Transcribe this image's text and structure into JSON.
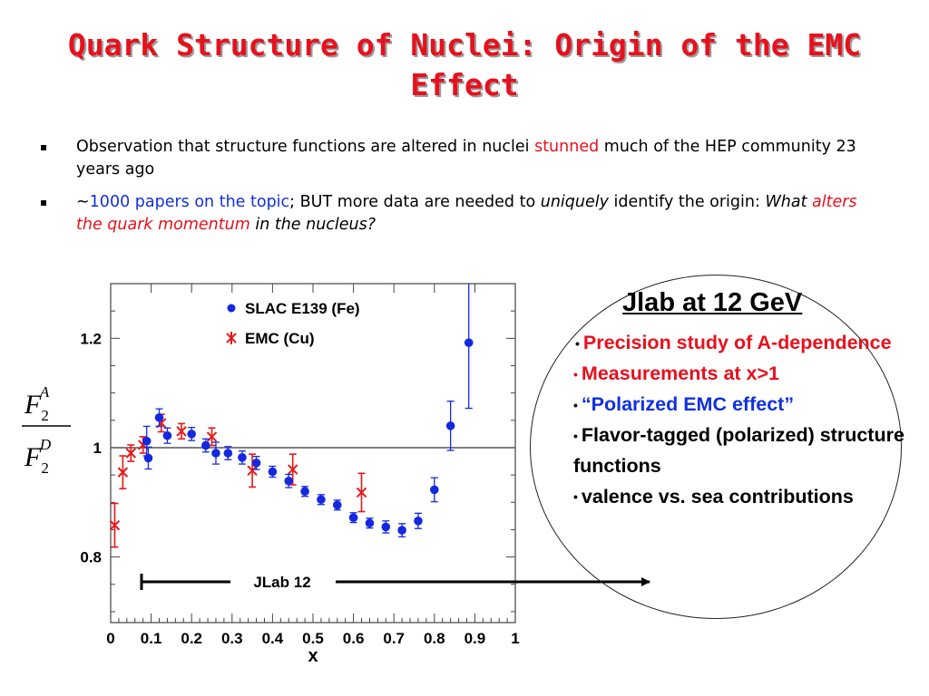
{
  "slide": {
    "title": "Quark Structure of Nuclei: Origin of the EMC Effect",
    "bullets": [
      {
        "marker": "▪",
        "segments": [
          {
            "text": "Observation that structure functions are altered in nuclei ",
            "style": "plain"
          },
          {
            "text": "stunned",
            "style": "red"
          },
          {
            "text": " much of the HEP community 23 years ago",
            "style": "plain"
          }
        ]
      },
      {
        "marker": "▪",
        "segments": [
          {
            "text": "~",
            "style": "plain"
          },
          {
            "text": "1000 papers on the topic",
            "style": "blue"
          },
          {
            "text": "; BUT more data are needed to ",
            "style": "plain"
          },
          {
            "text": "uniquely",
            "style": "italic"
          },
          {
            "text": " identify the origin: ",
            "style": "plain"
          },
          {
            "text": "What ",
            "style": "italic"
          },
          {
            "text": "alters the quark momentum",
            "style": "red-italic"
          },
          {
            "text": " in the nucleus?",
            "style": "italic"
          }
        ]
      }
    ],
    "jlab_box": {
      "title": "Jlab at 12 GeV",
      "marker": "•",
      "items": [
        {
          "text": "Precision study of A-dependence",
          "color": "#e8101c"
        },
        {
          "text": "Measurements at x>1",
          "color": "#e8101c"
        },
        {
          "text": "“Polarized EMC effect”",
          "color": "#1030e0"
        },
        {
          "text": "Flavor-tagged (polarized) structure functions",
          "color": "#000000"
        },
        {
          "text": "valence vs. sea contributions",
          "color": "#000000"
        }
      ]
    },
    "jlab12_label": "JLab 12"
  },
  "chart_data": {
    "type": "scatter",
    "xlabel": "x",
    "ylabel": "F2A / F2D",
    "ylabel_parts": {
      "num_base": "F",
      "num_sub": "2",
      "num_sup": "A",
      "den_base": "F",
      "den_sub": "2",
      "den_sup": "D"
    },
    "xlim": [
      0,
      1
    ],
    "ylim": [
      0.68,
      1.3
    ],
    "xticks": [
      "0",
      "0.1",
      "0.2",
      "0.3",
      "0.4",
      "0.5",
      "0.6",
      "0.7",
      "0.8",
      "0.9",
      "1"
    ],
    "yticks": [
      {
        "value": 0.8,
        "label": "0.8"
      },
      {
        "value": 1.0,
        "label": "1"
      },
      {
        "value": 1.2,
        "label": "1.2"
      }
    ],
    "reference_line": 1.0,
    "legend_position": "top-left",
    "series": [
      {
        "name": "SLAC E139 (Fe)",
        "marker": "circle",
        "color": "#1428e0",
        "points": [
          {
            "x": 0.089,
            "y": 1.012,
            "err": 0.027
          },
          {
            "x": 0.093,
            "y": 0.981,
            "err": 0.02
          },
          {
            "x": 0.12,
            "y": 1.055,
            "err": 0.016
          },
          {
            "x": 0.14,
            "y": 1.022,
            "err": 0.014
          },
          {
            "x": 0.2,
            "y": 1.025,
            "err": 0.012
          },
          {
            "x": 0.235,
            "y": 1.004,
            "err": 0.012
          },
          {
            "x": 0.26,
            "y": 0.99,
            "err": 0.02
          },
          {
            "x": 0.29,
            "y": 0.99,
            "err": 0.012
          },
          {
            "x": 0.325,
            "y": 0.982,
            "err": 0.012
          },
          {
            "x": 0.36,
            "y": 0.972,
            "err": 0.012
          },
          {
            "x": 0.4,
            "y": 0.956,
            "err": 0.01
          },
          {
            "x": 0.44,
            "y": 0.939,
            "err": 0.012
          },
          {
            "x": 0.48,
            "y": 0.92,
            "err": 0.009
          },
          {
            "x": 0.52,
            "y": 0.905,
            "err": 0.009
          },
          {
            "x": 0.56,
            "y": 0.895,
            "err": 0.009
          },
          {
            "x": 0.6,
            "y": 0.872,
            "err": 0.009
          },
          {
            "x": 0.64,
            "y": 0.862,
            "err": 0.009
          },
          {
            "x": 0.68,
            "y": 0.855,
            "err": 0.011
          },
          {
            "x": 0.72,
            "y": 0.849,
            "err": 0.012
          },
          {
            "x": 0.76,
            "y": 0.866,
            "err": 0.014
          },
          {
            "x": 0.8,
            "y": 0.923,
            "err": 0.022
          },
          {
            "x": 0.84,
            "y": 1.04,
            "err": 0.045
          },
          {
            "x": 0.885,
            "y": 1.192,
            "err": 0.12
          }
        ]
      },
      {
        "name": "EMC (Cu)",
        "marker": "star",
        "color": "#e81818",
        "points": [
          {
            "x": 0.01,
            "y": 0.858,
            "err": 0.04
          },
          {
            "x": 0.03,
            "y": 0.955,
            "err": 0.03
          },
          {
            "x": 0.05,
            "y": 0.99,
            "err": 0.015
          },
          {
            "x": 0.08,
            "y": 1.005,
            "err": 0.015
          },
          {
            "x": 0.125,
            "y": 1.045,
            "err": 0.016
          },
          {
            "x": 0.175,
            "y": 1.03,
            "err": 0.014
          },
          {
            "x": 0.25,
            "y": 1.02,
            "err": 0.016
          },
          {
            "x": 0.35,
            "y": 0.958,
            "err": 0.03
          },
          {
            "x": 0.45,
            "y": 0.96,
            "err": 0.028
          },
          {
            "x": 0.62,
            "y": 0.918,
            "err": 0.035
          }
        ]
      }
    ],
    "annotation": {
      "label": "JLab 12",
      "x_from": 0.07,
      "x_to": 1.35,
      "y": 0.79
    }
  }
}
